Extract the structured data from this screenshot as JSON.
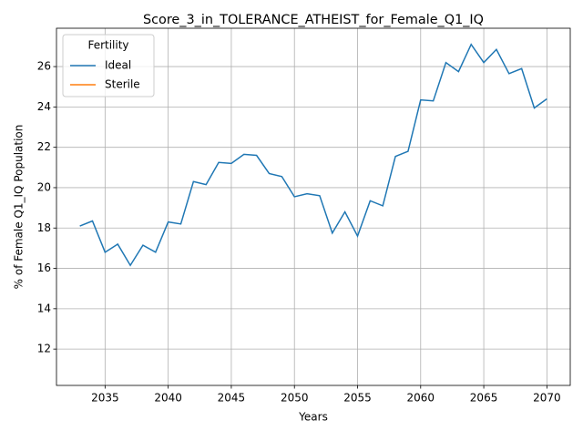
{
  "chart_data": {
    "type": "line",
    "title": "Score_3_in_TOLERANCE_ATHEIST_for_Female_Q1_IQ",
    "xlabel": "Years",
    "ylabel": "% of Female Q1_IQ Population",
    "x": [
      2033,
      2034,
      2035,
      2036,
      2037,
      2038,
      2039,
      2040,
      2041,
      2042,
      2043,
      2044,
      2045,
      2046,
      2047,
      2048,
      2049,
      2050,
      2051,
      2052,
      2053,
      2054,
      2055,
      2056,
      2057,
      2058,
      2059,
      2060,
      2061,
      2062,
      2063,
      2064,
      2065,
      2066,
      2067,
      2068,
      2069,
      2070
    ],
    "series": [
      {
        "name": "Ideal",
        "color": "#1f77b4",
        "values": [
          18.1,
          18.35,
          16.8,
          17.2,
          16.15,
          17.15,
          16.8,
          18.3,
          18.2,
          20.3,
          20.15,
          21.25,
          21.2,
          21.65,
          21.6,
          20.7,
          20.55,
          19.55,
          19.7,
          19.6,
          17.75,
          18.8,
          17.6,
          19.35,
          19.1,
          21.55,
          21.8,
          24.35,
          24.3,
          26.2,
          25.75,
          27.1,
          26.2,
          26.85,
          25.65,
          25.9,
          23.95,
          24.4
        ]
      },
      {
        "name": "Sterile",
        "color": "#ff7f0e",
        "values": [
          null,
          null,
          null,
          null,
          null,
          null,
          null,
          null,
          null,
          null,
          null,
          null,
          null,
          null,
          null,
          null,
          null,
          null,
          null,
          null,
          null,
          null,
          null,
          null,
          null,
          null,
          null,
          null,
          null,
          null,
          null,
          null,
          null,
          null,
          null,
          null,
          null,
          null
        ]
      }
    ],
    "legend_title": "Fertility",
    "legend": "upper left",
    "xlim": [
      2031.15,
      2071.85
    ],
    "xticks": [
      2035,
      2040,
      2045,
      2050,
      2055,
      2060,
      2065,
      2070
    ],
    "ylim": [
      10.2,
      27.9
    ],
    "yticks": [
      12,
      14,
      16,
      18,
      20,
      22,
      24,
      26
    ],
    "grid": true
  }
}
